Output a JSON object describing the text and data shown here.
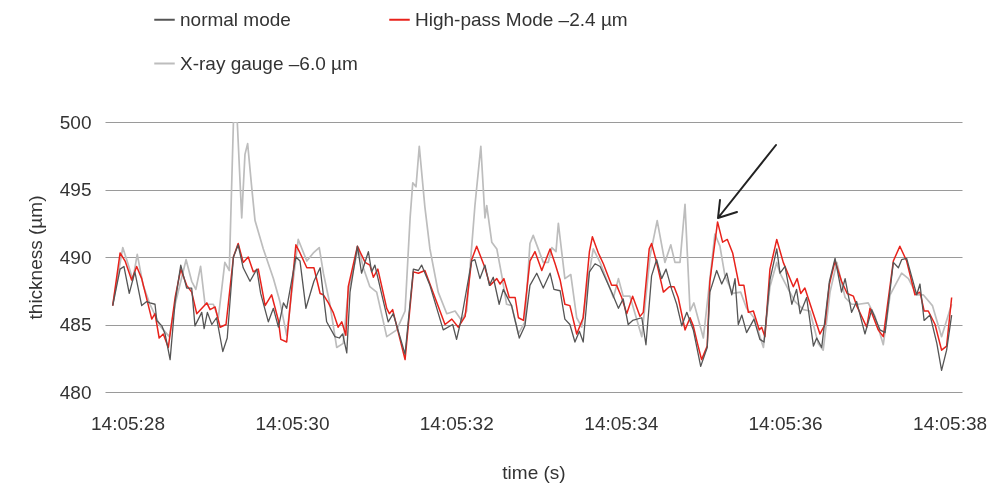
{
  "chart_data": {
    "type": "line",
    "xlabel": "time (s)",
    "ylabel": "thickness (µm)",
    "xlim": [
      14.091035,
      14.093931
    ],
    "ylim": [
      480,
      500
    ],
    "xticks": [
      {
        "value": 14.091111,
        "label": "14:05:28"
      },
      {
        "value": 14.091667,
        "label": "14:05:30"
      },
      {
        "value": 14.092222,
        "label": "14:05:32"
      },
      {
        "value": 14.092778,
        "label": "14:05:34"
      },
      {
        "value": 14.093333,
        "label": "14:05:36"
      },
      {
        "value": 14.093889,
        "label": "14:05:38"
      }
    ],
    "yticks": [
      480,
      485,
      490,
      495,
      500
    ],
    "grid": "y",
    "legend": "top",
    "marker": "none",
    "line_style": "solid",
    "series": [
      {
        "name": "normal mode",
        "color": "#555555",
        "x": [
          14.091061,
          14.091086,
          14.091099,
          14.091117,
          14.091136,
          14.091159,
          14.091176,
          14.091187,
          14.091204,
          14.09121,
          14.091227,
          14.091238,
          14.091255,
          14.091272,
          14.091291,
          14.091311,
          14.091328,
          14.091339,
          14.091362,
          14.09137,
          14.091381,
          14.091396,
          14.091412,
          14.091433,
          14.091448,
          14.091469,
          14.091485,
          14.091502,
          14.091525,
          14.091548,
          14.091561,
          14.091587,
          14.091604,
          14.091621,
          14.091638,
          14.091649,
          14.09168,
          14.091694,
          14.091714,
          14.091741,
          14.091762,
          14.091784,
          14.091812,
          14.091827,
          14.091838,
          14.091852,
          14.091863,
          14.091888,
          14.091902,
          14.091925,
          14.091936,
          14.091947,
          14.091992,
          14.092009,
          14.092049,
          14.092077,
          14.092094,
          14.092105,
          14.092133,
          14.092178,
          14.09221,
          14.092223,
          14.09224,
          14.092274,
          14.092285,
          14.092302,
          14.092319,
          14.092334,
          14.092347,
          14.092367,
          14.092381,
          14.092409,
          14.092435,
          14.092454,
          14.092471,
          14.092494,
          14.092516,
          14.092539,
          14.092552,
          14.092573,
          14.092589,
          14.092606,
          14.092623,
          14.092638,
          14.092651,
          14.092672,
          14.092691,
          14.092708,
          14.092747,
          14.09277,
          14.092786,
          14.092803,
          14.092818,
          14.092849,
          14.092863,
          14.092882,
          14.092899,
          14.092916,
          14.092931,
          14.09295,
          14.092967,
          14.092984,
          14.093001,
          14.093023,
          14.093048,
          14.09307,
          14.093079,
          14.093102,
          14.093119,
          14.093136,
          14.093153,
          14.093164,
          14.093175,
          14.093187,
          14.093203,
          14.093228,
          14.093248,
          14.093262,
          14.093282,
          14.093305,
          14.093316,
          14.093333,
          14.093356,
          14.093372,
          14.093384,
          14.093406,
          14.093429,
          14.09344,
          14.093457,
          14.093483,
          14.093502,
          14.093524,
          14.093536,
          14.093558,
          14.093575,
          14.093603,
          14.093626,
          14.093654,
          14.093671,
          14.093699,
          14.093716,
          14.093727,
          14.093744,
          14.093778,
          14.093789,
          14.093803,
          14.093823,
          14.093846,
          14.093862,
          14.093879,
          14.093896
        ],
        "values": [
          486.4,
          489.1,
          489.3,
          487.3,
          488.9,
          486.4,
          486.7,
          486.6,
          486.5,
          485.3,
          484.9,
          484.3,
          482.4,
          486.7,
          489.4,
          487.7,
          487.7,
          484.9,
          485.9,
          484.7,
          485.9,
          485.0,
          485.5,
          483.0,
          484.0,
          490.0,
          490.9,
          489.2,
          488.2,
          489.1,
          487.3,
          485.2,
          486.2,
          484.8,
          486.6,
          486.2,
          490.0,
          489.7,
          486.2,
          488.2,
          489.2,
          485.2,
          484.1,
          484.0,
          484.3,
          482.9,
          487.4,
          490.8,
          488.8,
          490.4,
          488.9,
          489.4,
          485.2,
          485.8,
          482.8,
          489.1,
          489.0,
          489.4,
          487.9,
          484.6,
          485.0,
          483.9,
          485.5,
          489.7,
          489.8,
          488.4,
          489.4,
          487.9,
          488.5,
          486.5,
          487.6,
          486.4,
          484.0,
          484.9,
          487.9,
          488.8,
          487.7,
          488.8,
          487.6,
          487.5,
          485.4,
          485.0,
          483.7,
          484.5,
          483.7,
          488.9,
          489.5,
          489.3,
          487.4,
          486.2,
          486.9,
          485.0,
          485.3,
          485.5,
          483.5,
          488.6,
          489.8,
          488.4,
          489.1,
          487.6,
          486.5,
          484.9,
          485.9,
          484.6,
          481.9,
          483.3,
          487.4,
          489.0,
          488.0,
          488.8,
          487.2,
          488.4,
          485.0,
          485.7,
          484.4,
          485.4,
          483.9,
          483.7,
          488.3,
          490.6,
          488.8,
          489.3,
          486.5,
          487.6,
          485.8,
          487.0,
          483.4,
          484.0,
          483.3,
          488.2,
          489.9,
          487.4,
          488.4,
          485.9,
          486.7,
          484.3,
          486.1,
          484.6,
          484.4,
          489.6,
          489.2,
          489.8,
          489.9,
          487.2,
          488.0,
          485.3,
          485.7,
          483.6,
          481.6,
          483.1,
          485.7
        ]
      },
      {
        "name": "High-pass Mode –2.4 µm",
        "color": "#e8221b",
        "x": [
          14.091061,
          14.091086,
          14.091103,
          14.091125,
          14.091142,
          14.091159,
          14.091193,
          14.091204,
          14.091218,
          14.091232,
          14.091249,
          14.091272,
          14.091291,
          14.091311,
          14.091328,
          14.091345,
          14.091379,
          14.09139,
          14.091407,
          14.091424,
          14.091444,
          14.091469,
          14.091485,
          14.091502,
          14.091519,
          14.091536,
          14.091553,
          14.091576,
          14.091598,
          14.091621,
          14.091629,
          14.091649,
          14.09168,
          14.091694,
          14.091717,
          14.091741,
          14.091762,
          14.091773,
          14.09179,
          14.091806,
          14.091823,
          14.091835,
          14.091849,
          14.091857,
          14.091888,
          14.091914,
          14.09193,
          14.091942,
          14.091957,
          14.091987,
          14.091996,
          14.092007,
          14.092049,
          14.092077,
          14.092094,
          14.092116,
          14.092184,
          14.092207,
          14.092229,
          14.092252,
          14.092274,
          14.092291,
          14.092319,
          14.092336,
          14.092359,
          14.09237,
          14.092383,
          14.092401,
          14.092421,
          14.092432,
          14.092449,
          14.092471,
          14.092488,
          14.092511,
          14.092539,
          14.092556,
          14.092573,
          14.092589,
          14.092606,
          14.092629,
          14.092651,
          14.092672,
          14.092682,
          14.092702,
          14.092719,
          14.092747,
          14.092764,
          14.092781,
          14.092798,
          14.092818,
          14.092843,
          14.092854,
          14.092874,
          14.092882,
          14.092899,
          14.092922,
          14.092942,
          14.092958,
          14.092972,
          14.092995,
          14.093012,
          14.093023,
          14.093037,
          14.093051,
          14.09307,
          14.093079,
          14.093105,
          14.093122,
          14.093138,
          14.093156,
          14.093178,
          14.093194,
          14.093209,
          14.093226,
          14.093246,
          14.093254,
          14.093265,
          14.093282,
          14.093305,
          14.093327,
          14.093361,
          14.093374,
          14.093386,
          14.0934,
          14.093451,
          14.093468,
          14.093483,
          14.093502,
          14.093524,
          14.093543,
          14.093564,
          14.093575,
          14.093609,
          14.09362,
          14.093648,
          14.093665,
          14.093699,
          14.093721,
          14.093744,
          14.093772,
          14.093789,
          14.093803,
          14.093817,
          14.09384,
          14.093862,
          14.093879,
          14.093896
        ],
        "values": [
          486.4,
          490.3,
          489.7,
          488.3,
          489.3,
          488.4,
          485.4,
          485.8,
          484.0,
          484.3,
          483.3,
          487.0,
          489.1,
          487.9,
          487.4,
          485.8,
          486.6,
          486.1,
          486.3,
          484.8,
          485.0,
          490.0,
          491.0,
          489.6,
          490.0,
          488.9,
          489.1,
          486.4,
          487.2,
          485.3,
          483.9,
          483.7,
          490.9,
          490.3,
          489.2,
          489.2,
          487.3,
          487.2,
          486.6,
          485.9,
          484.8,
          485.2,
          484.2,
          487.8,
          490.8,
          489.6,
          489.4,
          488.5,
          489.1,
          486.2,
          485.8,
          486.1,
          482.4,
          488.9,
          488.8,
          489.0,
          485.0,
          485.4,
          484.8,
          485.6,
          489.8,
          490.8,
          489.2,
          487.9,
          488.4,
          488.0,
          488.4,
          487.0,
          487.0,
          485.5,
          485.3,
          489.7,
          490.4,
          489.0,
          490.6,
          489.5,
          488.3,
          486.5,
          486.4,
          484.3,
          485.5,
          490.4,
          491.5,
          490.3,
          489.5,
          487.9,
          487.9,
          487.0,
          485.8,
          487.1,
          485.6,
          485.9,
          490.6,
          491.0,
          489.6,
          487.4,
          487.8,
          487.8,
          487.0,
          484.6,
          485.5,
          484.9,
          483.6,
          482.4,
          483.4,
          488.2,
          492.6,
          491.1,
          491.3,
          490.3,
          487.9,
          487.9,
          485.9,
          486.0,
          484.6,
          484.8,
          484.1,
          489.1,
          491.3,
          489.6,
          487.8,
          488.4,
          487.3,
          487.7,
          484.3,
          485.0,
          488.0,
          489.7,
          488.2,
          487.3,
          487.1,
          486.4,
          484.8,
          486.2,
          484.6,
          484.1,
          489.7,
          490.8,
          489.7,
          487.2,
          487.4,
          486.0,
          486.0,
          485.0,
          483.1,
          483.4,
          487.0
        ]
      },
      {
        "name": "X-ray gauge –6.0 µm",
        "color": "#bdbdbd",
        "x": [
          14.091061,
          14.091095,
          14.091114,
          14.091129,
          14.091144,
          14.091164,
          14.091187,
          14.091221,
          14.091252,
          14.091272,
          14.091309,
          14.091328,
          14.091342,
          14.091358,
          14.091373,
          14.091401,
          14.091418,
          14.09144,
          14.091455,
          14.091469,
          14.091482,
          14.091497,
          14.091508,
          14.091517,
          14.091531,
          14.091542,
          14.09157,
          14.091604,
          14.091626,
          14.091649,
          14.091666,
          14.091688,
          14.091717,
          14.091739,
          14.091759,
          14.091773,
          14.091795,
          14.091818,
          14.09184,
          14.091857,
          14.091891,
          14.091908,
          14.09193,
          14.091953,
          14.091987,
          14.092021,
          14.092049,
          14.092066,
          14.092075,
          14.092086,
          14.092097,
          14.092116,
          14.092133,
          14.092161,
          14.09219,
          14.092218,
          14.09224,
          14.092257,
          14.092285,
          14.092305,
          14.092319,
          14.092325,
          14.092342,
          14.092359,
          14.092376,
          14.092392,
          14.092409,
          14.092432,
          14.092454,
          14.092471,
          14.092482,
          14.092499,
          14.092516,
          14.092533,
          14.092545,
          14.092559,
          14.092567,
          14.092589,
          14.092609,
          14.092629,
          14.092646,
          14.092668,
          14.092685,
          14.092708,
          14.092753,
          14.09277,
          14.092786,
          14.092809,
          14.092849,
          14.092877,
          14.092901,
          14.092927,
          14.092947,
          14.092961,
          14.092978,
          14.092995,
          14.093012,
          14.093025,
          14.093057,
          14.093096,
          14.093113,
          14.09313,
          14.093156,
          14.093183,
          14.093203,
          14.093228,
          14.09326,
          14.093282,
          14.093305,
          14.093316,
          14.093344,
          14.093367,
          14.093395,
          14.093417,
          14.093445,
          14.093462,
          14.093485,
          14.093508,
          14.093536,
          14.093558,
          14.093581,
          14.093614,
          14.093637,
          14.093665,
          14.093688,
          14.093727,
          14.09375,
          14.093778,
          14.0938,
          14.093831,
          14.093862,
          14.093896
        ],
        "values": [
          486.4,
          490.7,
          489.4,
          488.3,
          490.2,
          487.9,
          486.5,
          484.9,
          484.1,
          486.5,
          489.8,
          488.2,
          487.6,
          489.3,
          486.5,
          486.5,
          485.5,
          489.6,
          489.0,
          500.0,
          500.0,
          492.9,
          497.6,
          498.4,
          495.1,
          492.7,
          490.6,
          488.4,
          486.7,
          484.2,
          487.4,
          491.3,
          489.7,
          490.3,
          490.7,
          488.8,
          486.5,
          483.3,
          483.6,
          487.4,
          490.7,
          489.2,
          487.8,
          487.4,
          484.1,
          484.6,
          486.0,
          492.9,
          495.5,
          495.2,
          498.2,
          493.7,
          490.6,
          487.4,
          485.8,
          486.0,
          485.3,
          486.0,
          493.8,
          498.2,
          492.9,
          493.8,
          491.1,
          490.6,
          488.6,
          486.5,
          486.4,
          484.3,
          485.2,
          491.0,
          491.6,
          490.6,
          489.6,
          489.6,
          490.7,
          490.4,
          492.5,
          488.4,
          488.7,
          485.5,
          484.8,
          488.4,
          490.6,
          489.6,
          487.0,
          488.4,
          487.1,
          487.1,
          484.1,
          490.1,
          492.7,
          489.6,
          490.9,
          489.6,
          489.6,
          493.9,
          486.0,
          486.6,
          484.0,
          491.7,
          490.8,
          488.6,
          487.3,
          487.4,
          486.2,
          485.5,
          483.3,
          487.8,
          489.6,
          488.8,
          487.6,
          486.7,
          486.1,
          486.0,
          483.6,
          483.1,
          487.4,
          489.6,
          487.0,
          486.5,
          486.5,
          486.6,
          485.6,
          483.5,
          487.2,
          488.8,
          488.4,
          487.2,
          487.2,
          486.4,
          484.1,
          486.5
        ]
      }
    ]
  }
}
